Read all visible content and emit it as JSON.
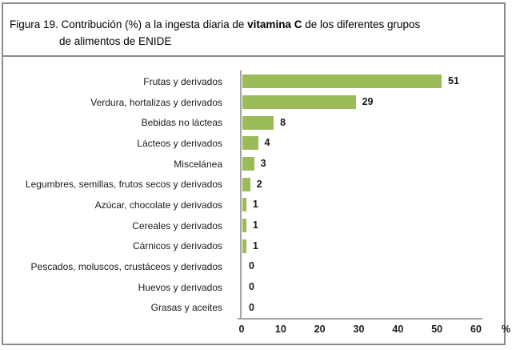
{
  "figure": {
    "title": {
      "line1_pre": "Figura 19. Contribución (%) a la ingesta diaria de ",
      "line1_bold": "vitamina C",
      "line1_post": " de los diferentes grupos",
      "line2": "de alimentos de ENIDE"
    }
  },
  "chart_data": {
    "type": "bar",
    "orientation": "horizontal",
    "title": "Figura 19. Contribución (%) a la ingesta diaria de vitamina C de los diferentes grupos de alimentos de ENIDE",
    "categories": [
      "Frutas y derivados",
      "Verdura, hortalizas y derivados",
      "Bebidas no lácteas",
      "Lácteos y derivados",
      "Miscelánea",
      "Legumbres, semillas, frutos secos y derivados",
      "Azúcar, chocolate y derivados",
      "Cereales y derivados",
      "Cárnicos y derivados",
      "Pescados, moluscos, crustáceos y derivados",
      "Huevos y derivados",
      "Grasas y aceites"
    ],
    "values": [
      51,
      29,
      8,
      4,
      3,
      2,
      1,
      1,
      1,
      0,
      0,
      0
    ],
    "value_labels_position": "outside-end",
    "xlabel": "%",
    "xticks": [
      0,
      10,
      20,
      30,
      40,
      50,
      60
    ],
    "xlim": [
      0,
      60
    ],
    "grid": false,
    "legend": "none",
    "bar_color": "#9BBB59",
    "axis_color": "#a6a6a6",
    "frame_color": "#8c8c8c"
  }
}
